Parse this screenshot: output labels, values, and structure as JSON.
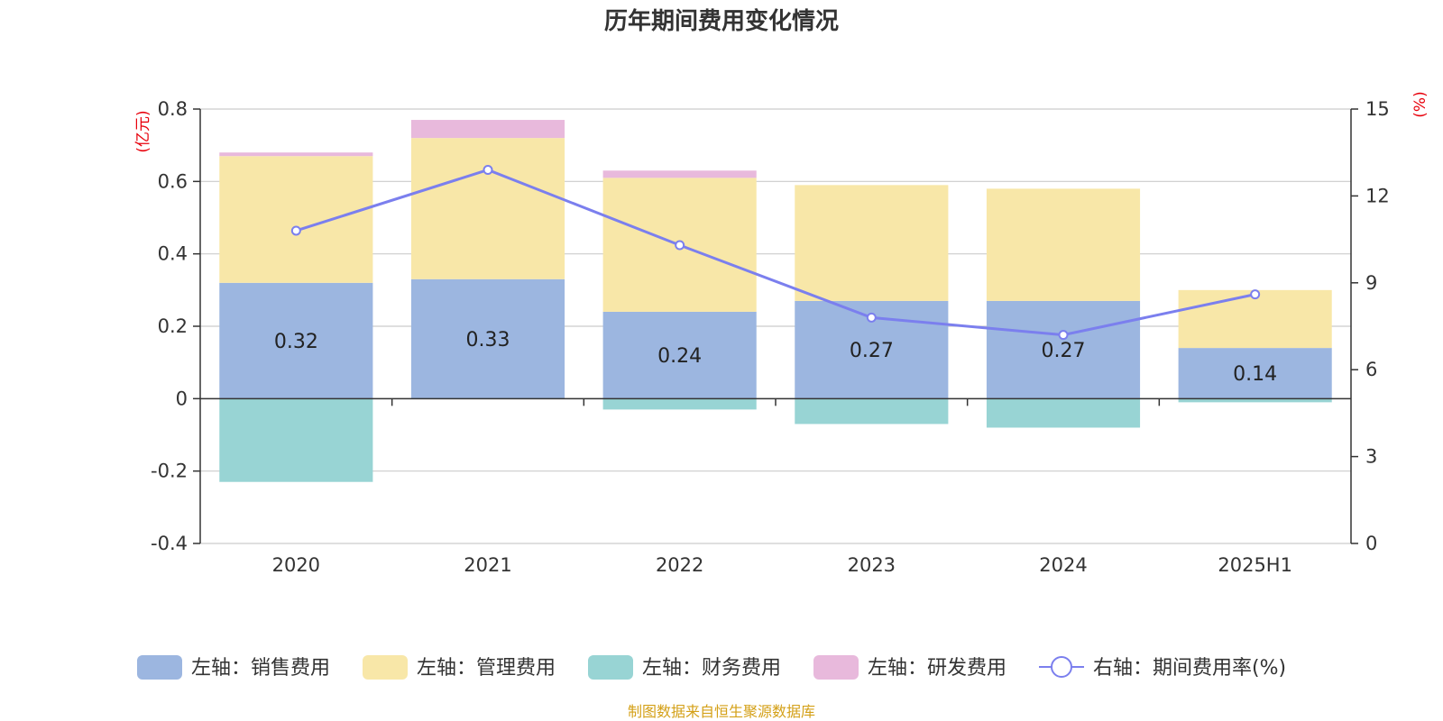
{
  "chart_data": {
    "type": "bar",
    "title": "历年期间费用变化情况",
    "categories": [
      "2020",
      "2021",
      "2022",
      "2023",
      "2024",
      "2025H1"
    ],
    "left_axis": {
      "unit": "(亿元)",
      "min": -0.4,
      "max": 0.8,
      "ticks": [
        "-0.4",
        "-0.2",
        "0",
        "0.2",
        "0.4",
        "0.6",
        "0.8"
      ]
    },
    "right_axis": {
      "unit": "(%)",
      "min": 0,
      "max": 15,
      "ticks": [
        "0",
        "3",
        "6",
        "9",
        "12",
        "15"
      ]
    },
    "series": [
      {
        "name": "左轴：销售费用",
        "axis": "left",
        "kind": "bar",
        "color": "#9cb6e0",
        "values": [
          0.32,
          0.33,
          0.24,
          0.27,
          0.27,
          0.14
        ],
        "labels": [
          "0.32",
          "0.33",
          "0.24",
          "0.27",
          "0.27",
          "0.14"
        ]
      },
      {
        "name": "左轴：管理费用",
        "axis": "left",
        "kind": "bar",
        "color": "#f8e7a8",
        "values": [
          0.35,
          0.39,
          0.37,
          0.32,
          0.31,
          0.16
        ]
      },
      {
        "name": "左轴：财务费用",
        "axis": "left",
        "kind": "bar",
        "color": "#98d4d4",
        "values": [
          -0.23,
          0.0,
          -0.03,
          -0.07,
          -0.08,
          -0.01
        ]
      },
      {
        "name": "左轴：研发费用",
        "axis": "left",
        "kind": "bar",
        "color": "#e8b9dc",
        "values": [
          0.01,
          0.05,
          0.02,
          0.0,
          0.0,
          0.0
        ]
      },
      {
        "name": "右轴：期间费用率(%)",
        "axis": "right",
        "kind": "line",
        "color": "#7b7fee",
        "values": [
          10.8,
          12.9,
          10.3,
          7.8,
          7.2,
          8.6
        ]
      }
    ],
    "legend_position": "bottom",
    "grid": true
  },
  "source_text": "制图数据来自恒生聚源数据库",
  "colors": {
    "unit_label": "#e8000b",
    "source": "#d4a017",
    "axis": "#333333",
    "grid": "#cccccc"
  }
}
